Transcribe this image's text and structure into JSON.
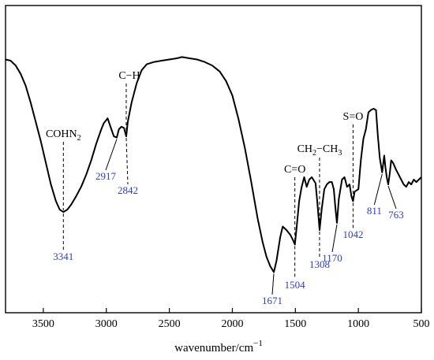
{
  "chart_data": {
    "type": "line",
    "xlabel": "wavenumber/cm",
    "xlabel_sup": "−1",
    "xlim": [
      3800,
      500
    ],
    "ylim": [
      0,
      100
    ],
    "x_ticks": [
      "3500",
      "3000",
      "2500",
      "2000",
      "1500",
      "1000",
      "500"
    ],
    "x_tick_values": [
      3500,
      3000,
      2500,
      2000,
      1500,
      1000,
      500
    ],
    "grid": false,
    "series": [
      {
        "color": "#000000",
        "points": [
          [
            3800,
            90
          ],
          [
            3760,
            89.5
          ],
          [
            3720,
            87.5
          ],
          [
            3680,
            84
          ],
          [
            3640,
            79
          ],
          [
            3600,
            72
          ],
          [
            3560,
            64
          ],
          [
            3520,
            56
          ],
          [
            3480,
            47
          ],
          [
            3440,
            38
          ],
          [
            3400,
            31
          ],
          [
            3370,
            27.5
          ],
          [
            3341,
            26.5
          ],
          [
            3310,
            27.5
          ],
          [
            3280,
            29.5
          ],
          [
            3240,
            33
          ],
          [
            3200,
            37
          ],
          [
            3160,
            42
          ],
          [
            3120,
            48
          ],
          [
            3080,
            55
          ],
          [
            3040,
            61
          ],
          [
            3020,
            63.5
          ],
          [
            2990,
            65.5
          ],
          [
            2960,
            61
          ],
          [
            2940,
            58
          ],
          [
            2917,
            57.5
          ],
          [
            2900,
            61
          ],
          [
            2880,
            62
          ],
          [
            2860,
            61.5
          ],
          [
            2842,
            58
          ],
          [
            2830,
            64
          ],
          [
            2800,
            72
          ],
          [
            2760,
            80
          ],
          [
            2720,
            85.5
          ],
          [
            2680,
            88
          ],
          [
            2620,
            89
          ],
          [
            2560,
            89.5
          ],
          [
            2500,
            90
          ],
          [
            2440,
            90.5
          ],
          [
            2400,
            91
          ],
          [
            2340,
            90.5
          ],
          [
            2280,
            90
          ],
          [
            2220,
            89
          ],
          [
            2160,
            87.5
          ],
          [
            2100,
            85
          ],
          [
            2050,
            81
          ],
          [
            2000,
            75
          ],
          [
            1950,
            65
          ],
          [
            1900,
            53
          ],
          [
            1850,
            39
          ],
          [
            1800,
            24
          ],
          [
            1760,
            14
          ],
          [
            1730,
            8
          ],
          [
            1700,
            4
          ],
          [
            1671,
            1.5
          ],
          [
            1650,
            6
          ],
          [
            1620,
            16
          ],
          [
            1600,
            20.5
          ],
          [
            1570,
            19
          ],
          [
            1540,
            17
          ],
          [
            1520,
            15
          ],
          [
            1504,
            13
          ],
          [
            1490,
            20
          ],
          [
            1470,
            31
          ],
          [
            1450,
            37
          ],
          [
            1430,
            41
          ],
          [
            1410,
            37
          ],
          [
            1390,
            40
          ],
          [
            1370,
            41
          ],
          [
            1340,
            38.5
          ],
          [
            1325,
            30
          ],
          [
            1308,
            19
          ],
          [
            1290,
            28
          ],
          [
            1270,
            36
          ],
          [
            1250,
            38
          ],
          [
            1230,
            39
          ],
          [
            1210,
            39
          ],
          [
            1195,
            36
          ],
          [
            1180,
            27
          ],
          [
            1170,
            22
          ],
          [
            1155,
            32
          ],
          [
            1130,
            40
          ],
          [
            1110,
            41
          ],
          [
            1090,
            37
          ],
          [
            1070,
            38
          ],
          [
            1055,
            33
          ],
          [
            1042,
            31
          ],
          [
            1030,
            35
          ],
          [
            1000,
            36
          ],
          [
            980,
            48
          ],
          [
            960,
            57
          ],
          [
            940,
            61
          ],
          [
            920,
            68
          ],
          [
            900,
            69
          ],
          [
            880,
            69.5
          ],
          [
            860,
            69
          ],
          [
            845,
            58
          ],
          [
            830,
            49
          ],
          [
            811,
            43
          ],
          [
            795,
            50
          ],
          [
            785,
            45
          ],
          [
            775,
            41
          ],
          [
            763,
            38
          ],
          [
            750,
            43
          ],
          [
            740,
            48
          ],
          [
            725,
            47
          ],
          [
            700,
            44
          ],
          [
            680,
            42
          ],
          [
            660,
            40
          ],
          [
            640,
            38
          ],
          [
            620,
            37
          ],
          [
            600,
            39
          ],
          [
            580,
            38
          ],
          [
            560,
            40
          ],
          [
            540,
            39
          ],
          [
            520,
            40
          ],
          [
            500,
            41
          ]
        ]
      }
    ],
    "peaks": [
      {
        "label": "3341",
        "x": 3341
      },
      {
        "label": "2917",
        "x": 2917
      },
      {
        "label": "2842",
        "x": 2842
      },
      {
        "label": "1671",
        "x": 1671
      },
      {
        "label": "1504",
        "x": 1504
      },
      {
        "label": "1308",
        "x": 1308
      },
      {
        "label": "1170",
        "x": 1170
      },
      {
        "label": "1042",
        "x": 1042
      },
      {
        "label": "811",
        "x": 811
      },
      {
        "label": "763",
        "x": 763
      }
    ],
    "annotations": [
      {
        "text": "COHN",
        "sub": "2",
        "x": 3341
      },
      {
        "text": "C−H",
        "sub": "",
        "x": 2842
      },
      {
        "text": "C=O",
        "sub": "",
        "x": 1504
      },
      {
        "text": "CH",
        "sub": "2",
        "tail": "−CH",
        "sub2": "3",
        "x": 1308
      },
      {
        "text": "S=O",
        "sub": "",
        "x": 1042
      }
    ]
  }
}
